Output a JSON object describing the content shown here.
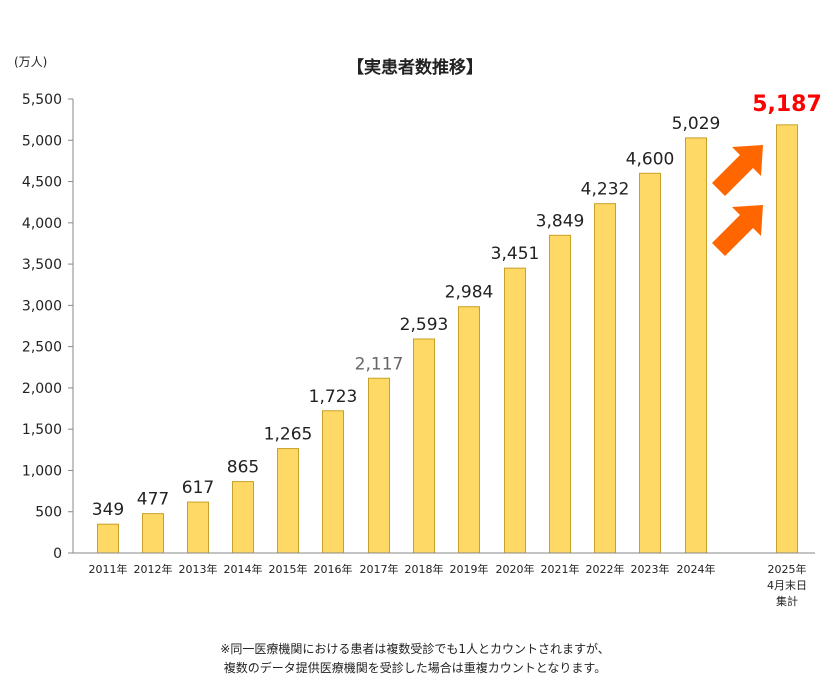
{
  "chart_data": {
    "type": "bar",
    "title": "【実患者数推移】",
    "ylabel": "(万人)",
    "ylim": [
      0,
      5500
    ],
    "yticks": [
      0,
      500,
      1000,
      1500,
      2000,
      2500,
      3000,
      3500,
      4000,
      4500,
      5000,
      5500
    ],
    "ytick_labels": [
      "0",
      "500",
      "1,000",
      "1,500",
      "2,000",
      "2,500",
      "3,000",
      "3,500",
      "4,000",
      "4,500",
      "5,000",
      "5,500"
    ],
    "categories": [
      "2011年",
      "2012年",
      "2013年",
      "2014年",
      "2015年",
      "2016年",
      "2017年",
      "2018年",
      "2019年",
      "2020年",
      "2021年",
      "2022年",
      "2023年",
      "2024年",
      "2025年\n4月末日\n集計"
    ],
    "values": [
      349,
      477,
      617,
      865,
      1265,
      1723,
      2117,
      2593,
      2984,
      3451,
      3849,
      4232,
      4600,
      5029,
      5187
    ],
    "value_labels": [
      "349",
      "477",
      "617",
      "865",
      "1,265",
      "1,723",
      "2,117",
      "2,593",
      "2,984",
      "3,451",
      "3,849",
      "4,232",
      "4,600",
      "5,029",
      "5,187"
    ],
    "highlight_index": 14,
    "colors": {
      "bar_fill": "#ffd966",
      "bar_stroke": "#c8a028",
      "highlight_label": "#ff0000",
      "arrow": "#ff6600",
      "muted_label": "#666666"
    },
    "grid": false
  },
  "footnote": {
    "line1": "※同一医療機関における患者は複数受診でも1人とカウントされますが、",
    "line2": "複数のデータ提供医療機関を受診した場合は重複カウントとなります。"
  }
}
